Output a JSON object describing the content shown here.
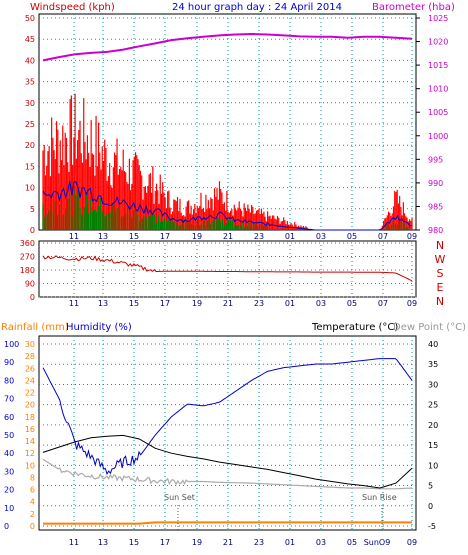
{
  "header": {
    "windspeed_label": "Windspeed (kph)",
    "graph_title": "24 hour graph day : 24 April 2014",
    "barometer_label": "Barometer (hba)"
  },
  "colors": {
    "wind": "#ff0000",
    "gust": "#ff0000",
    "wind_avg": "#0000cc",
    "wind_low": "#008000",
    "barometer": "#cc00cc",
    "direction": "#cc0000",
    "humidity": "#0000cc",
    "temperature": "#000000",
    "dew_point": "#aaaaaa",
    "rainfall": "#ff8000",
    "grid": "#009999",
    "left_axis": "#cc0000",
    "right_axis": "#cc00cc",
    "bottom_left_axis": "#0000cc",
    "bottom_right_axis": "#000000"
  },
  "x_ticks": [
    "11",
    "13",
    "15",
    "17",
    "19",
    "21",
    "23",
    "01",
    "03",
    "05",
    "07",
    "09"
  ],
  "wind_axis": {
    "ticks": [
      "0",
      "5",
      "10",
      "15",
      "20",
      "25",
      "30",
      "35",
      "40",
      "45",
      "50"
    ]
  },
  "baro_axis": {
    "ticks": [
      "980",
      "985",
      "990",
      "995",
      "1000",
      "1005",
      "1010",
      "1015",
      "1020",
      "1025"
    ]
  },
  "dir_axis": {
    "ticks": [
      "0",
      "90",
      "180",
      "270",
      "360"
    ],
    "compass": [
      "N",
      "W",
      "S",
      "E",
      "N"
    ]
  },
  "bottom_panel": {
    "rainfall_label": "Rainfall (mm)",
    "humidity_label": "Humidity (%)",
    "temperature_label": "Temperature (°C)",
    "dewpoint_label": "Dew Point (°C)",
    "humidity_ticks": [
      "0",
      "10",
      "20",
      "30",
      "40",
      "50",
      "60",
      "70",
      "80",
      "90",
      "100"
    ],
    "rain_ticks": [
      "0",
      "2",
      "4",
      "6",
      "8",
      "10",
      "12",
      "14",
      "16",
      "18",
      "20",
      "22",
      "24",
      "26",
      "28",
      "30"
    ],
    "temp_ticks": [
      "-5",
      "0",
      "5",
      "10",
      "15",
      "20",
      "25",
      "30",
      "35",
      "40"
    ],
    "sun_set_label": "Sun Set",
    "sun_rise_label": "Sun Rise",
    "x_ticks": [
      "11",
      "13",
      "15",
      "17",
      "19",
      "21",
      "23",
      "01",
      "03",
      "05",
      "SunO9",
      "09"
    ]
  },
  "chart_data": [
    {
      "type": "line",
      "title": "24 hour graph day : 24 April 2014",
      "x": [
        "10",
        "11",
        "12",
        "13",
        "14",
        "15",
        "16",
        "17",
        "18",
        "19",
        "20",
        "21",
        "22",
        "23",
        "00",
        "01",
        "02",
        "03",
        "04",
        "05",
        "06",
        "07",
        "08",
        "09"
      ],
      "series": [
        {
          "name": "Windspeed (kph)",
          "axis": "left",
          "values": [
            18,
            20,
            22,
            20,
            16,
            14,
            12,
            10,
            6,
            5,
            7,
            8,
            5,
            4,
            3,
            2,
            1,
            0,
            0,
            0,
            0,
            0,
            7,
            2
          ]
        },
        {
          "name": "Barometer (hba)",
          "axis": "right",
          "values": [
            1016,
            1016.7,
            1017.3,
            1017.6,
            1017.8,
            1018.3,
            1019,
            1019.6,
            1020.3,
            1020.7,
            1021,
            1021.3,
            1021.5,
            1021.6,
            1021.5,
            1021.3,
            1021.1,
            1021,
            1021,
            1020.8,
            1021,
            1021,
            1020.8,
            1020.6
          ]
        }
      ],
      "ylim_left": [
        0,
        50
      ],
      "ylim_right": [
        980,
        1025
      ]
    },
    {
      "type": "line",
      "x": [
        "10",
        "11",
        "12",
        "13",
        "14",
        "15",
        "16",
        "17",
        "18",
        "19",
        "20",
        "21",
        "22",
        "23",
        "00",
        "01",
        "02",
        "03",
        "04",
        "05",
        "06",
        "07",
        "08",
        "09"
      ],
      "series": [
        {
          "name": "Wind direction",
          "values": [
            270,
            262,
            255,
            260,
            245,
            225,
            200,
            170,
            172,
            172,
            171,
            170,
            170,
            168,
            168,
            167,
            167,
            166,
            166,
            166,
            165,
            165,
            160,
            108
          ]
        }
      ],
      "ylim": [
        0,
        360
      ]
    },
    {
      "type": "line",
      "x": [
        "10",
        "11",
        "12",
        "13",
        "14",
        "15",
        "16",
        "17",
        "18",
        "19",
        "20",
        "21",
        "22",
        "23",
        "00",
        "01",
        "02",
        "03",
        "04",
        "05",
        "06",
        "07",
        "08",
        "09"
      ],
      "series": [
        {
          "name": "Humidity (%)",
          "axis": "left",
          "values": [
            87,
            70,
            45,
            38,
            30,
            35,
            38,
            50,
            60,
            67,
            66,
            68,
            74,
            80,
            85,
            87,
            88,
            89,
            89,
            90,
            91,
            92,
            92,
            80
          ]
        },
        {
          "name": "Temperature (°C)",
          "axis": "right",
          "values": [
            13.2,
            14.5,
            15.8,
            16.8,
            17.2,
            17.4,
            16.5,
            14.2,
            13,
            12.2,
            11.6,
            10.8,
            10.2,
            9.6,
            9,
            8.2,
            7.4,
            6.6,
            6,
            5.4,
            5,
            4.4,
            5.6,
            9.3
          ]
        },
        {
          "name": "Dew Point (°C)",
          "axis": "right",
          "values": [
            11.5,
            9,
            8,
            7.4,
            7,
            6.8,
            6.5,
            6.2,
            6,
            6,
            6,
            5.8,
            5.7,
            5.6,
            5.4,
            5.2,
            5,
            4.8,
            4.6,
            4.4,
            4.4,
            4.2,
            4.2,
            4.4
          ]
        },
        {
          "name": "Rainfall (mm)",
          "axis": "left",
          "values": [
            0.4,
            0.4,
            0.4,
            0.4,
            0.4,
            0.4,
            0.4,
            0.6,
            0.6,
            0.6,
            0.6,
            0.6,
            0.6,
            0.6,
            0.6,
            0.6,
            0.6,
            0.6,
            0.6,
            0.6,
            0.6,
            0.6,
            0.6,
            0.6
          ]
        }
      ],
      "ylim_humidity": [
        0,
        100
      ],
      "ylim_temperature": [
        -5,
        40
      ],
      "ylim_rainfall": [
        0,
        30
      ]
    }
  ]
}
